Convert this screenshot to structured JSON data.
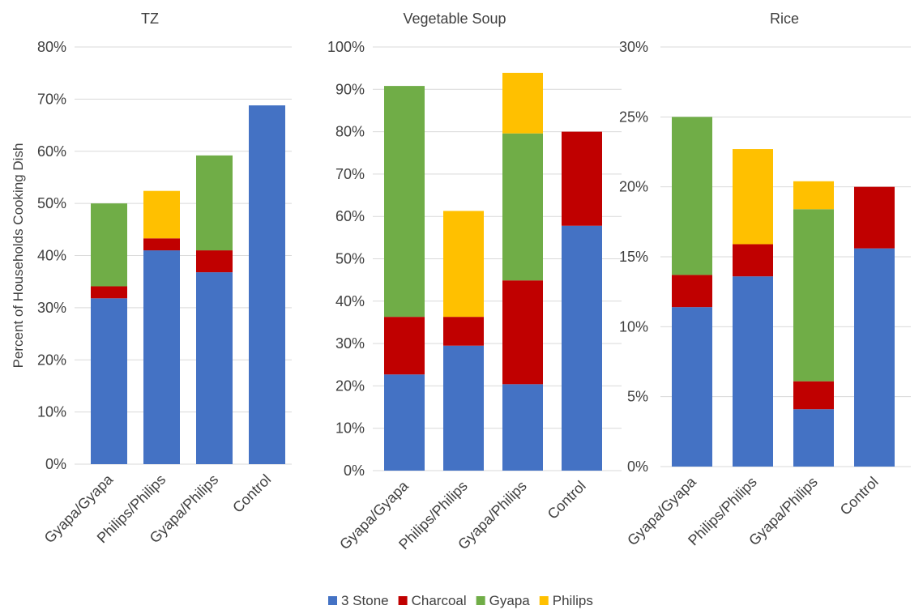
{
  "legend": [
    {
      "name": "3 Stone",
      "color": "#4472c4"
    },
    {
      "name": "Charcoal",
      "color": "#c00000"
    },
    {
      "name": "Gyapa",
      "color": "#70ad47"
    },
    {
      "name": "Philips",
      "color": "#ffc000"
    }
  ],
  "chart_data": [
    {
      "type": "bar",
      "stacked": true,
      "title": "TZ",
      "ylabel": "Percent of Households Cooking Dish",
      "xlabel": "",
      "categories": [
        "Gyapa/Gyapa",
        "Philips/Philips",
        "Gyapa/Philips",
        "Control"
      ],
      "ylim": [
        0,
        80
      ],
      "yticks": [
        "0%",
        "10%",
        "20%",
        "30%",
        "40%",
        "50%",
        "60%",
        "70%",
        "80%"
      ],
      "grid": true,
      "legend_position": "bottom",
      "series": [
        {
          "name": "3 Stone",
          "values": [
            31.8,
            41.0,
            36.8,
            68.8
          ]
        },
        {
          "name": "Charcoal",
          "values": [
            2.3,
            2.3,
            4.2,
            0
          ]
        },
        {
          "name": "Gyapa",
          "values": [
            15.9,
            0,
            18.2,
            0
          ]
        },
        {
          "name": "Philips",
          "values": [
            0,
            9.1,
            0,
            0
          ]
        }
      ]
    },
    {
      "type": "bar",
      "stacked": true,
      "title": "Vegetable Soup",
      "ylabel": "",
      "xlabel": "",
      "categories": [
        "Gyapa/Gyapa",
        "Philips/Philips",
        "Gyapa/Philips",
        "Control"
      ],
      "ylim": [
        0,
        100
      ],
      "yticks": [
        "0%",
        "10%",
        "20%",
        "30%",
        "40%",
        "50%",
        "60%",
        "70%",
        "80%",
        "90%",
        "100%"
      ],
      "grid": true,
      "legend_position": "bottom",
      "series": [
        {
          "name": "3 Stone",
          "values": [
            22.7,
            29.5,
            20.4,
            57.8
          ]
        },
        {
          "name": "Charcoal",
          "values": [
            13.6,
            6.8,
            24.5,
            22.2
          ]
        },
        {
          "name": "Gyapa",
          "values": [
            54.5,
            0,
            34.7,
            0
          ]
        },
        {
          "name": "Philips",
          "values": [
            0,
            25.0,
            14.3,
            0
          ]
        }
      ]
    },
    {
      "type": "bar",
      "stacked": true,
      "title": "Rice",
      "ylabel": "",
      "xlabel": "",
      "categories": [
        "Gyapa/Gyapa",
        "Philips/Philips",
        "Gyapa/Philips",
        "Control"
      ],
      "ylim": [
        0,
        30
      ],
      "yticks": [
        "0%",
        "5%",
        "10%",
        "15%",
        "20%",
        "25%",
        "30%"
      ],
      "grid": true,
      "legend_position": "bottom",
      "series": [
        {
          "name": "3 Stone",
          "values": [
            11.4,
            13.6,
            4.1,
            15.6
          ]
        },
        {
          "name": "Charcoal",
          "values": [
            2.3,
            2.3,
            2.0,
            4.4
          ]
        },
        {
          "name": "Gyapa",
          "values": [
            11.3,
            0,
            12.3,
            0
          ]
        },
        {
          "name": "Philips",
          "values": [
            0,
            6.8,
            2.0,
            0
          ]
        }
      ]
    }
  ]
}
